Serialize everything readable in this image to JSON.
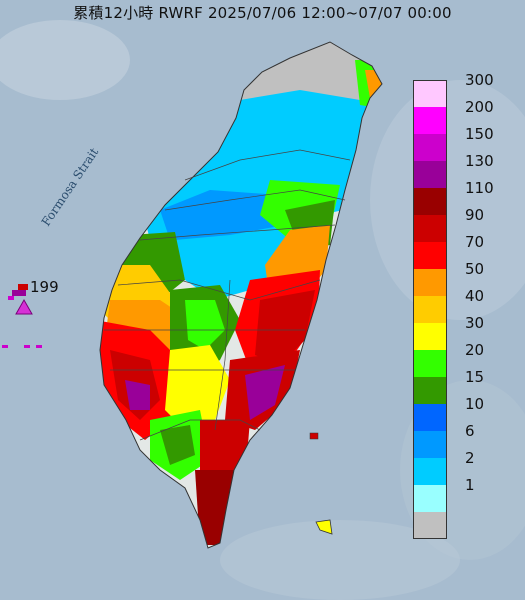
{
  "title": "累積12小時 RWRF 2025/07/06 12:00~07/07 00:00",
  "strait_label": "Formosa Strait",
  "marker": {
    "label": "199",
    "color": "#d630d6"
  },
  "legend": [
    {
      "label": "300",
      "color": "#ffc8ff"
    },
    {
      "label": "200",
      "color": "#ff00ff"
    },
    {
      "label": "150",
      "color": "#cc00cc"
    },
    {
      "label": "130",
      "color": "#990099"
    },
    {
      "label": "110",
      "color": "#990000"
    },
    {
      "label": "90",
      "color": "#cc0000"
    },
    {
      "label": "70",
      "color": "#ff0000"
    },
    {
      "label": "50",
      "color": "#ff9900"
    },
    {
      "label": "40",
      "color": "#ffcc00"
    },
    {
      "label": "30",
      "color": "#ffff00"
    },
    {
      "label": "20",
      "color": "#33ff00"
    },
    {
      "label": "15",
      "color": "#339900"
    },
    {
      "label": "10",
      "color": "#0066ff"
    },
    {
      "label": "6",
      "color": "#0099ff"
    },
    {
      "label": "2",
      "color": "#00ccff"
    },
    {
      "label": "1",
      "color": "#99ffff"
    },
    {
      "label": "",
      "color": "#c0c0c0"
    }
  ]
}
